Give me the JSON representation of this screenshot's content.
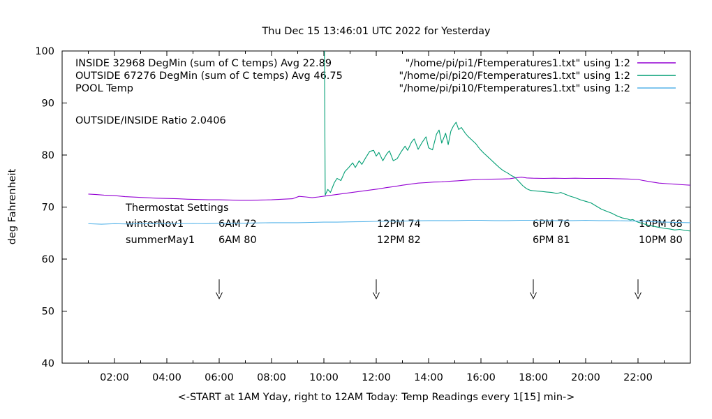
{
  "title": "Thu Dec 15 13:46:01 UTC 2022 for Yesterday",
  "ylabel": "deg Fahrenheit",
  "xlabel": "<-START at 1AM Yday, right to 12AM Today:  Temp Readings every 1[15] min->",
  "ratio_label": "OUTSIDE/INSIDE Ratio 2.0406",
  "legend": {
    "rows": [
      {
        "label": "INSIDE 32968 DegMin (sum of C temps) Avg 22.89",
        "file": "\"/home/pi/pi1/Ftemperatures1.txt\" using 1:2",
        "color": "#9400d3"
      },
      {
        "label": "OUTSIDE 67276 DegMin (sum of C temps) Avg 46.75",
        "file": "\"/home/pi/pi20/Ftemperatures1.txt\" using 1:2",
        "color": "#009e73"
      },
      {
        "label": "POOL Temp",
        "file": "\"/home/pi/pi10/Ftemperatures1.txt\" using 1:2",
        "color": "#56b4e9"
      }
    ]
  },
  "thermostat": {
    "heading": "Thermostat Settings",
    "rows": [
      {
        "name": "winterNov1",
        "cells": [
          "6AM 72",
          "12PM 74",
          "6PM 76",
          "10PM 68"
        ]
      },
      {
        "name": "summerMay1",
        "cells": [
          "6AM 80",
          "12PM 82",
          "6PM 81",
          "10PM 80"
        ]
      }
    ]
  },
  "chart_data": {
    "type": "line",
    "title": "Thu Dec 15 13:46:01 UTC 2022 for Yesterday",
    "xlabel": "<-START at 1AM Yday, right to 12AM Today:  Temp Readings every 1[15] min->",
    "ylabel": "deg Fahrenheit",
    "xlim": [
      0,
      24
    ],
    "ylim": [
      40,
      100
    ],
    "grid": false,
    "legend_position": "top-left-inside",
    "x_major_ticks": [
      {
        "value": 2,
        "label": "02:00"
      },
      {
        "value": 4,
        "label": "04:00"
      },
      {
        "value": 6,
        "label": "06:00"
      },
      {
        "value": 8,
        "label": "08:00"
      },
      {
        "value": 10,
        "label": "10:00"
      },
      {
        "value": 12,
        "label": "12:00"
      },
      {
        "value": 14,
        "label": "14:00"
      },
      {
        "value": 16,
        "label": "16:00"
      },
      {
        "value": 18,
        "label": "18:00"
      },
      {
        "value": 20,
        "label": "20:00"
      },
      {
        "value": 22,
        "label": "22:00"
      }
    ],
    "x_minor_ticks": [
      1,
      3,
      5,
      7,
      9,
      11,
      13,
      15,
      17,
      19,
      21,
      23
    ],
    "y_ticks": [
      {
        "value": 40,
        "label": "40"
      },
      {
        "value": 50,
        "label": "50"
      },
      {
        "value": 60,
        "label": "60"
      },
      {
        "value": 70,
        "label": "70"
      },
      {
        "value": 80,
        "label": "80"
      },
      {
        "value": 90,
        "label": "90"
      },
      {
        "value": 100,
        "label": "100"
      }
    ],
    "arrows": {
      "x_values": [
        6,
        12,
        18,
        22
      ],
      "shaft_top": 56.1,
      "shaft_bottom": 53.3,
      "tip": 52.4,
      "arm": 53.6
    },
    "series": [
      {
        "name": "INSIDE",
        "color": "#9400d3",
        "points": [
          [
            1.0,
            72.5
          ],
          [
            1.3,
            72.4
          ],
          [
            1.6,
            72.3
          ],
          [
            2.0,
            72.2
          ],
          [
            2.4,
            72.0
          ],
          [
            2.8,
            71.9
          ],
          [
            3.2,
            71.8
          ],
          [
            3.6,
            71.7
          ],
          [
            4.0,
            71.65
          ],
          [
            4.4,
            71.6
          ],
          [
            4.8,
            71.5
          ],
          [
            5.2,
            71.45
          ],
          [
            5.6,
            71.4
          ],
          [
            6.0,
            71.4
          ],
          [
            6.4,
            71.35
          ],
          [
            6.8,
            71.3
          ],
          [
            7.2,
            71.3
          ],
          [
            7.6,
            71.35
          ],
          [
            8.0,
            71.4
          ],
          [
            8.4,
            71.5
          ],
          [
            8.8,
            71.6
          ],
          [
            9.05,
            72.05
          ],
          [
            9.3,
            71.95
          ],
          [
            9.55,
            71.8
          ],
          [
            9.8,
            71.95
          ],
          [
            10.0,
            72.1
          ],
          [
            10.3,
            72.3
          ],
          [
            10.6,
            72.5
          ],
          [
            10.9,
            72.7
          ],
          [
            11.2,
            72.9
          ],
          [
            11.5,
            73.1
          ],
          [
            11.8,
            73.3
          ],
          [
            12.1,
            73.5
          ],
          [
            12.4,
            73.75
          ],
          [
            12.7,
            73.95
          ],
          [
            13.0,
            74.2
          ],
          [
            13.3,
            74.4
          ],
          [
            13.6,
            74.6
          ],
          [
            13.9,
            74.7
          ],
          [
            14.2,
            74.8
          ],
          [
            14.5,
            74.85
          ],
          [
            14.8,
            74.95
          ],
          [
            15.1,
            75.05
          ],
          [
            15.4,
            75.15
          ],
          [
            15.7,
            75.25
          ],
          [
            16.0,
            75.3
          ],
          [
            16.4,
            75.35
          ],
          [
            16.8,
            75.4
          ],
          [
            17.1,
            75.45
          ],
          [
            17.35,
            75.65
          ],
          [
            17.55,
            75.75
          ],
          [
            17.75,
            75.6
          ],
          [
            18.0,
            75.55
          ],
          [
            18.4,
            75.5
          ],
          [
            18.8,
            75.55
          ],
          [
            19.2,
            75.5
          ],
          [
            19.6,
            75.55
          ],
          [
            20.0,
            75.5
          ],
          [
            20.4,
            75.5
          ],
          [
            20.8,
            75.5
          ],
          [
            21.2,
            75.45
          ],
          [
            21.6,
            75.4
          ],
          [
            22.0,
            75.3
          ],
          [
            22.2,
            75.1
          ],
          [
            22.5,
            74.85
          ],
          [
            22.8,
            74.6
          ],
          [
            23.1,
            74.5
          ],
          [
            23.4,
            74.4
          ],
          [
            23.7,
            74.3
          ],
          [
            24.0,
            74.2
          ]
        ]
      },
      {
        "name": "OUTSIDE",
        "color": "#009e73",
        "points": [
          [
            10.02,
            100
          ],
          [
            10.05,
            72.3
          ],
          [
            10.15,
            73.4
          ],
          [
            10.25,
            72.8
          ],
          [
            10.4,
            74.7
          ],
          [
            10.5,
            75.5
          ],
          [
            10.65,
            75.1
          ],
          [
            10.8,
            76.8
          ],
          [
            10.95,
            77.6
          ],
          [
            11.1,
            78.5
          ],
          [
            11.2,
            77.6
          ],
          [
            11.35,
            78.9
          ],
          [
            11.45,
            78.2
          ],
          [
            11.6,
            79.5
          ],
          [
            11.75,
            80.7
          ],
          [
            11.9,
            80.9
          ],
          [
            12.0,
            79.8
          ],
          [
            12.1,
            80.5
          ],
          [
            12.25,
            78.9
          ],
          [
            12.4,
            80.2
          ],
          [
            12.5,
            80.8
          ],
          [
            12.65,
            78.9
          ],
          [
            12.8,
            79.3
          ],
          [
            12.95,
            80.6
          ],
          [
            13.1,
            81.7
          ],
          [
            13.2,
            80.9
          ],
          [
            13.35,
            82.5
          ],
          [
            13.45,
            83.1
          ],
          [
            13.6,
            81.1
          ],
          [
            13.75,
            82.4
          ],
          [
            13.9,
            83.5
          ],
          [
            14.0,
            81.4
          ],
          [
            14.15,
            81.0
          ],
          [
            14.3,
            84.0
          ],
          [
            14.4,
            84.8
          ],
          [
            14.5,
            82.3
          ],
          [
            14.65,
            84.2
          ],
          [
            14.75,
            82.0
          ],
          [
            14.85,
            84.6
          ],
          [
            14.95,
            85.6
          ],
          [
            15.05,
            86.3
          ],
          [
            15.15,
            84.9
          ],
          [
            15.25,
            85.3
          ],
          [
            15.4,
            84.2
          ],
          [
            15.5,
            83.6
          ],
          [
            15.65,
            82.9
          ],
          [
            15.8,
            82.2
          ],
          [
            15.95,
            81.2
          ],
          [
            16.1,
            80.4
          ],
          [
            16.25,
            79.7
          ],
          [
            16.4,
            79.0
          ],
          [
            16.55,
            78.3
          ],
          [
            16.7,
            77.6
          ],
          [
            16.85,
            77.0
          ],
          [
            17.0,
            76.6
          ],
          [
            17.15,
            76.1
          ],
          [
            17.3,
            75.7
          ],
          [
            17.45,
            74.9
          ],
          [
            17.6,
            74.1
          ],
          [
            17.75,
            73.5
          ],
          [
            17.9,
            73.2
          ],
          [
            18.1,
            73.1
          ],
          [
            18.3,
            73.0
          ],
          [
            18.5,
            72.9
          ],
          [
            18.7,
            72.8
          ],
          [
            18.9,
            72.6
          ],
          [
            19.05,
            72.8
          ],
          [
            19.25,
            72.4
          ],
          [
            19.4,
            72.1
          ],
          [
            19.6,
            71.8
          ],
          [
            19.8,
            71.4
          ],
          [
            20.0,
            71.1
          ],
          [
            20.2,
            70.8
          ],
          [
            20.4,
            70.2
          ],
          [
            20.6,
            69.6
          ],
          [
            20.8,
            69.2
          ],
          [
            21.0,
            68.8
          ],
          [
            21.2,
            68.3
          ],
          [
            21.4,
            67.9
          ],
          [
            21.6,
            67.7
          ],
          [
            21.7,
            67.5
          ],
          [
            21.8,
            67.6
          ],
          [
            21.9,
            67.3
          ],
          [
            22.0,
            67.1
          ],
          [
            22.2,
            66.8
          ],
          [
            22.4,
            66.5
          ],
          [
            22.6,
            66.3
          ],
          [
            22.8,
            66.1
          ],
          [
            23.0,
            65.9
          ],
          [
            23.2,
            65.8
          ],
          [
            23.4,
            65.6
          ],
          [
            23.6,
            65.7
          ],
          [
            23.8,
            65.5
          ],
          [
            24.0,
            65.4
          ]
        ]
      },
      {
        "name": "POOL",
        "color": "#56b4e9",
        "points": [
          [
            1.0,
            66.8
          ],
          [
            1.5,
            66.7
          ],
          [
            2.0,
            66.8
          ],
          [
            2.5,
            66.75
          ],
          [
            3.0,
            66.8
          ],
          [
            3.5,
            66.8
          ],
          [
            4.0,
            66.85
          ],
          [
            4.5,
            66.8
          ],
          [
            5.0,
            66.85
          ],
          [
            5.5,
            66.8
          ],
          [
            6.0,
            66.9
          ],
          [
            6.5,
            66.9
          ],
          [
            7.0,
            66.9
          ],
          [
            7.5,
            66.95
          ],
          [
            8.0,
            67.0
          ],
          [
            8.5,
            67.0
          ],
          [
            9.0,
            67.0
          ],
          [
            9.5,
            67.05
          ],
          [
            10.0,
            67.1
          ],
          [
            10.5,
            67.1
          ],
          [
            11.0,
            67.15
          ],
          [
            11.5,
            67.2
          ],
          [
            12.0,
            67.25
          ],
          [
            12.5,
            67.3
          ],
          [
            13.0,
            67.3
          ],
          [
            13.5,
            67.35
          ],
          [
            14.0,
            67.4
          ],
          [
            14.5,
            67.4
          ],
          [
            15.0,
            67.4
          ],
          [
            15.5,
            67.45
          ],
          [
            16.0,
            67.45
          ],
          [
            16.5,
            67.4
          ],
          [
            17.0,
            67.4
          ],
          [
            17.5,
            67.45
          ],
          [
            18.0,
            67.45
          ],
          [
            18.5,
            67.4
          ],
          [
            19.0,
            67.4
          ],
          [
            19.5,
            67.4
          ],
          [
            20.0,
            67.45
          ],
          [
            20.5,
            67.4
          ],
          [
            21.0,
            67.4
          ],
          [
            21.5,
            67.35
          ],
          [
            22.0,
            67.3
          ],
          [
            22.5,
            67.2
          ],
          [
            23.0,
            67.1
          ],
          [
            23.5,
            67.05
          ],
          [
            24.0,
            67.0
          ]
        ]
      }
    ]
  }
}
